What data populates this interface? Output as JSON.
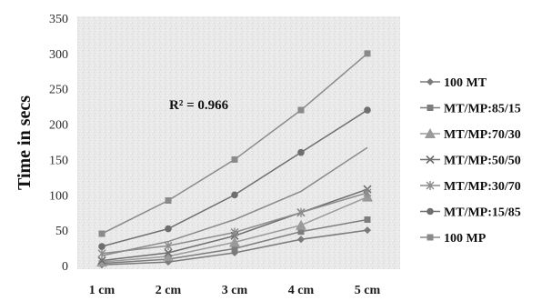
{
  "chart_data": {
    "type": "line",
    "categories": [
      "1 cm",
      "2 cm",
      "3 cm",
      "4 cm",
      "5 cm"
    ],
    "ylabel": "Time in secs",
    "xlabel": "",
    "ylim": [
      0,
      350
    ],
    "yticks": [
      0,
      50,
      100,
      150,
      200,
      250,
      300,
      350
    ],
    "grid": false,
    "legend_position": "right",
    "annotation": "R² = 0.966",
    "series": [
      {
        "name": "100  MT",
        "marker": "diamond",
        "color": "#7a7a7a",
        "values": [
          1,
          5,
          18,
          37,
          50
        ]
      },
      {
        "name": "MT/MP:85/15",
        "marker": "square",
        "color": "#7d7d7d",
        "values": [
          3,
          9,
          24,
          48,
          65
        ]
      },
      {
        "name": "MT/MP:70/30",
        "marker": "triangle",
        "color": "#9a9a9a",
        "values": [
          5,
          13,
          33,
          57,
          97
        ]
      },
      {
        "name": "MT/MP:50/50",
        "marker": "x",
        "color": "#6e6e6e",
        "values": [
          7,
          18,
          42,
          75,
          108
        ]
      },
      {
        "name": "MT/MP:30/70",
        "marker": "star",
        "color": "#8c8c8c",
        "values": [
          17,
          28,
          47,
          75,
          103
        ]
      },
      {
        "name": "MT/MP:15/85",
        "marker": "circle",
        "color": "#6e6e6e",
        "values": [
          27,
          52,
          100,
          160,
          220
        ]
      },
      {
        "name": "100 MP",
        "marker": "square",
        "color": "#8a8a8a",
        "values": [
          45,
          92,
          150,
          220,
          300
        ]
      },
      {
        "name": "",
        "marker": "none",
        "color": "#8a8a8a",
        "values": [
          14,
          34,
          65,
          105,
          167
        ]
      }
    ]
  }
}
